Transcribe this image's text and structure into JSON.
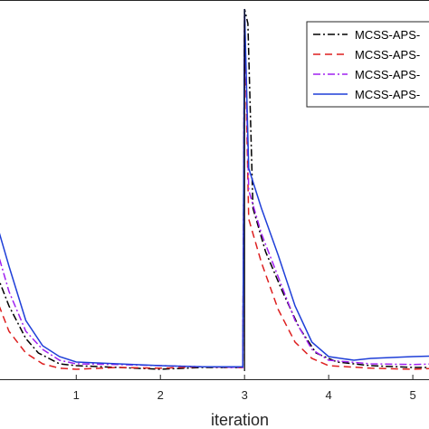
{
  "chart_data": {
    "type": "line",
    "title": "",
    "xlabel": "iteration",
    "ylabel": "",
    "xlim": [
      -0.1,
      5.3
    ],
    "ylim": [
      0,
      1
    ],
    "xticks": [
      "1",
      "2",
      "3",
      "4",
      "5"
    ],
    "grid": false,
    "legend": {
      "placement": "top-right"
    },
    "series": [
      {
        "name": "MCSS-APS-",
        "color": "#000000",
        "dash": "dashdot",
        "values": [
          [
            -0.1,
            0.34
          ],
          [
            0.0,
            0.3
          ],
          [
            0.2,
            0.18
          ],
          [
            0.4,
            0.09
          ],
          [
            0.55,
            0.05
          ],
          [
            0.8,
            0.02
          ],
          [
            1.0,
            0.015
          ],
          [
            1.5,
            0.01
          ],
          [
            2.0,
            0.005
          ],
          [
            2.5,
            0.01
          ],
          [
            2.98,
            0.01
          ],
          [
            3.0,
            1.0
          ],
          [
            3.04,
            0.96
          ],
          [
            3.1,
            0.45
          ],
          [
            3.25,
            0.33
          ],
          [
            3.45,
            0.22
          ],
          [
            3.65,
            0.12
          ],
          [
            3.85,
            0.05
          ],
          [
            4.1,
            0.025
          ],
          [
            4.5,
            0.015
          ],
          [
            5.0,
            0.01
          ],
          [
            5.3,
            0.01
          ]
        ]
      },
      {
        "name": "MCSS-APS-",
        "color": "#dd1f1f",
        "dash": "dashed",
        "values": [
          [
            -0.1,
            0.27
          ],
          [
            0.0,
            0.23
          ],
          [
            0.2,
            0.11
          ],
          [
            0.4,
            0.05
          ],
          [
            0.6,
            0.02
          ],
          [
            0.8,
            0.008
          ],
          [
            1.0,
            0.005
          ],
          [
            1.5,
            0.01
          ],
          [
            2.0,
            0.008
          ],
          [
            2.5,
            0.012
          ],
          [
            2.98,
            0.01
          ],
          [
            3.0,
            0.97
          ],
          [
            3.05,
            0.42
          ],
          [
            3.2,
            0.3
          ],
          [
            3.4,
            0.17
          ],
          [
            3.6,
            0.08
          ],
          [
            3.8,
            0.035
          ],
          [
            4.0,
            0.015
          ],
          [
            4.5,
            0.008
          ],
          [
            5.0,
            0.005
          ],
          [
            5.3,
            0.008
          ]
        ]
      },
      {
        "name": "MCSS-APS-",
        "color": "#a020f0",
        "dash": "dashdot",
        "values": [
          [
            -0.1,
            0.42
          ],
          [
            0.0,
            0.38
          ],
          [
            0.2,
            0.22
          ],
          [
            0.4,
            0.11
          ],
          [
            0.6,
            0.06
          ],
          [
            0.8,
            0.03
          ],
          [
            1.0,
            0.02
          ],
          [
            1.5,
            0.018
          ],
          [
            2.0,
            0.015
          ],
          [
            2.5,
            0.012
          ],
          [
            2.98,
            0.01
          ],
          [
            3.0,
            0.99
          ],
          [
            3.05,
            0.5
          ],
          [
            3.2,
            0.38
          ],
          [
            3.4,
            0.26
          ],
          [
            3.6,
            0.14
          ],
          [
            3.8,
            0.06
          ],
          [
            4.0,
            0.03
          ],
          [
            4.5,
            0.02
          ],
          [
            5.0,
            0.018
          ],
          [
            5.3,
            0.02
          ]
        ]
      },
      {
        "name": "MCSS-APS-",
        "color": "#1f3fd8",
        "dash": "solid",
        "values": [
          [
            -0.1,
            0.49
          ],
          [
            0.0,
            0.45
          ],
          [
            0.2,
            0.29
          ],
          [
            0.4,
            0.14
          ],
          [
            0.6,
            0.07
          ],
          [
            0.8,
            0.04
          ],
          [
            1.0,
            0.025
          ],
          [
            1.5,
            0.02
          ],
          [
            2.0,
            0.015
          ],
          [
            2.5,
            0.012
          ],
          [
            2.98,
            0.012
          ],
          [
            3.0,
            1.0
          ],
          [
            3.05,
            0.56
          ],
          [
            3.2,
            0.45
          ],
          [
            3.4,
            0.32
          ],
          [
            3.6,
            0.18
          ],
          [
            3.8,
            0.08
          ],
          [
            4.0,
            0.04
          ],
          [
            4.3,
            0.03
          ],
          [
            4.5,
            0.035
          ],
          [
            5.0,
            0.04
          ],
          [
            5.3,
            0.042
          ]
        ]
      }
    ]
  }
}
